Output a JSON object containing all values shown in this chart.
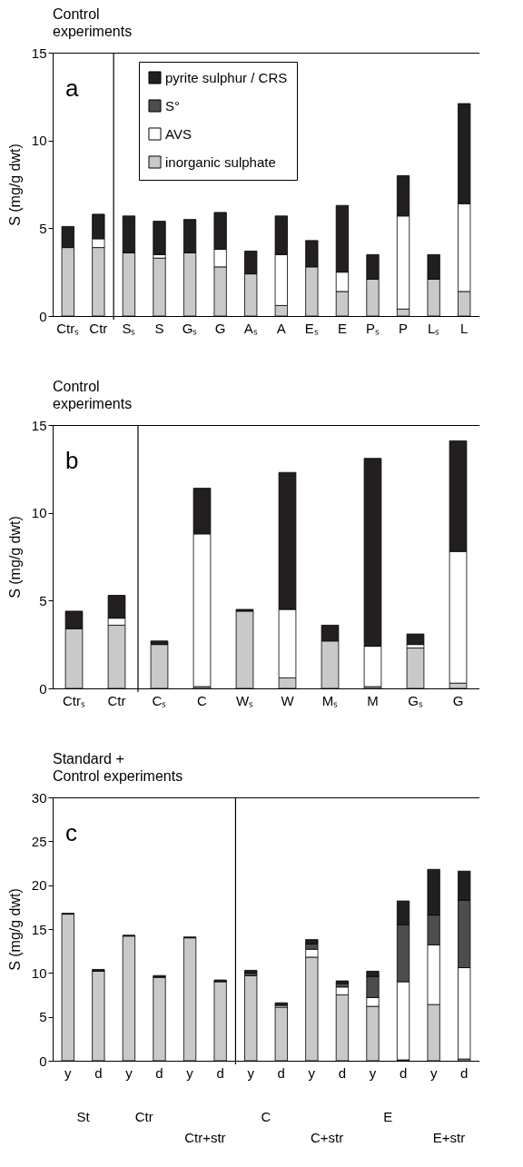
{
  "chart_data": [
    {
      "type": "bar",
      "title": "Control\nexperiments",
      "ylabel": "S (mg/g dwt)",
      "stacked": true,
      "legend": "top",
      "annotations": [
        "a"
      ],
      "categories": [
        "Ctrₛ",
        "Ctr",
        "Sₛ",
        "S",
        "Gₛ",
        "G",
        "Aₛ",
        "A",
        "Eₛ",
        "E",
        "Pₛ",
        "P",
        "Lₛ",
        "L"
      ],
      "ylim": [
        0,
        15
      ],
      "yticks": [
        0,
        5,
        10,
        15
      ],
      "series": [
        {
          "name": "inorganic sulphate",
          "color": "#c8c9cb",
          "values": [
            3.9,
            3.9,
            3.6,
            3.3,
            3.6,
            2.8,
            2.4,
            0.6,
            2.8,
            1.4,
            2.1,
            0.4,
            2.1,
            1.4
          ]
        },
        {
          "name": "AVS",
          "color": "#ffffff",
          "values": [
            null,
            0.5,
            null,
            0.2,
            null,
            1,
            null,
            2.9,
            null,
            1.1,
            null,
            5.3,
            null,
            5
          ]
        },
        {
          "name": "S°",
          "color": "#4d4d4d",
          "values": [
            null,
            null,
            null,
            null,
            null,
            null,
            null,
            null,
            null,
            null,
            null,
            null,
            null,
            null
          ]
        },
        {
          "name": "pyrite sulphur / CRS",
          "color": "#231f20",
          "values": [
            1.2,
            1.4,
            2.1,
            1.9,
            1.9,
            2.1,
            1.3,
            2.2,
            1.5,
            3.8,
            1.4,
            2.3,
            1.4,
            5.7
          ]
        }
      ]
    },
    {
      "type": "bar",
      "title": "Control\nexperiments",
      "ylabel": "S (mg/g dwt)",
      "stacked": true,
      "annotations": [
        "b"
      ],
      "categories": [
        "Ctrₛ",
        "Ctr",
        "Cₛ",
        "C",
        "Wₛ",
        "W",
        "Mₛ",
        "M",
        "Gₛ",
        "G"
      ],
      "ylim": [
        0,
        15
      ],
      "yticks": [
        0,
        5,
        10,
        15
      ],
      "series": [
        {
          "color": "#c8c9cb",
          "values": [
            3.4,
            3.6,
            2.5,
            0.1,
            4.4,
            0.6,
            2.7,
            0.1,
            2.3,
            0.3
          ]
        },
        {
          "color": "#ffffff",
          "values": [
            null,
            0.4,
            null,
            8.7,
            null,
            3.9,
            null,
            2.3,
            0.2,
            7.5
          ]
        },
        {
          "color": "#231f20",
          "values": [
            1,
            1.3,
            0.2,
            2.6,
            0.1,
            7.8,
            0.9,
            10.7,
            0.6,
            6.3
          ]
        }
      ]
    },
    {
      "type": "bar",
      "title": "Standard +\nControl experiments",
      "ylabel": "S (mg/g dwt)",
      "stacked": true,
      "annotations": [
        "c",
        "St",
        "Ctr",
        "Ctr+str",
        "C",
        "C+str",
        "E",
        "E+str"
      ],
      "categories": [
        "y",
        "d",
        "y",
        "d",
        "y",
        "d",
        "y",
        "d",
        "y",
        "d",
        "y",
        "d",
        "y",
        "d"
      ],
      "ylim": [
        0,
        30
      ],
      "yticks": [
        0,
        5,
        10,
        15,
        20,
        25,
        30
      ],
      "series": [
        {
          "color": "#c8c9cb",
          "values": [
            16.7,
            10.2,
            14.2,
            9.5,
            14,
            9,
            9.7,
            6.1,
            11.8,
            7.5,
            6.2,
            0.1,
            6.4,
            0.2
          ]
        },
        {
          "color": "#ffffff",
          "values": [
            null,
            null,
            null,
            null,
            null,
            null,
            null,
            0.2,
            0.9,
            0.9,
            1,
            8.9,
            6.8,
            10.4
          ]
        },
        {
          "color": "#4d4d4d",
          "values": [
            null,
            null,
            null,
            null,
            null,
            null,
            0.3,
            null,
            0.6,
            0.4,
            2.4,
            6.5,
            3.4,
            7.7
          ]
        },
        {
          "color": "#231f20",
          "values": [
            0.1,
            0.2,
            0.1,
            0.2,
            0.1,
            0.2,
            0.3,
            0.3,
            0.5,
            0.3,
            0.6,
            2.7,
            5.2,
            3.3
          ]
        }
      ]
    }
  ]
}
